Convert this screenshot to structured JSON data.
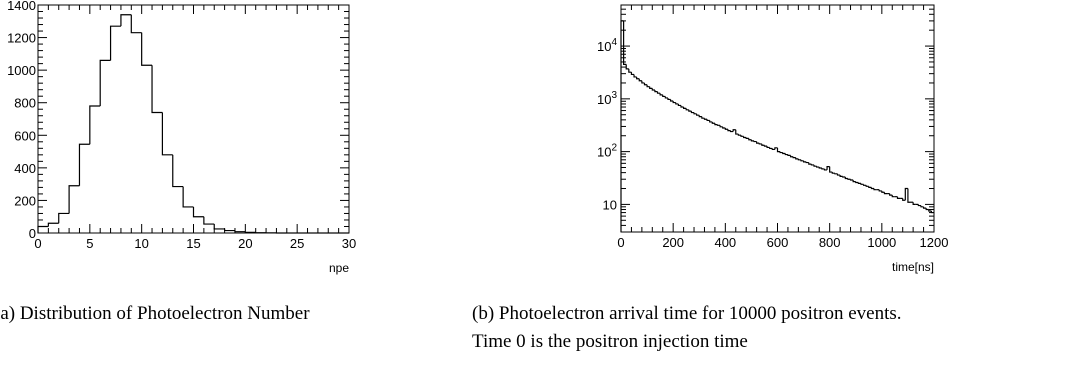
{
  "chart_data": [
    {
      "type": "histogram",
      "title": "",
      "xlabel": "npe",
      "ylabel": "",
      "xlim": [
        0,
        30
      ],
      "ylim": [
        0,
        1400
      ],
      "x_ticks": [
        "0",
        "5",
        "10",
        "15",
        "20",
        "25",
        "30"
      ],
      "y_ticks": [
        "0",
        "200",
        "400",
        "600",
        "800",
        "1000",
        "1200",
        "1400"
      ],
      "bin_edges": [
        0,
        1,
        2,
        3,
        4,
        5,
        6,
        7,
        8,
        9,
        10,
        11,
        12,
        13,
        14,
        15,
        16,
        17,
        18,
        19,
        20,
        21,
        22,
        23,
        24,
        25,
        26,
        27,
        28,
        29,
        30
      ],
      "values": [
        40,
        60,
        120,
        290,
        545,
        780,
        1060,
        1270,
        1340,
        1230,
        1030,
        740,
        480,
        285,
        160,
        100,
        55,
        25,
        15,
        8,
        4,
        2,
        1,
        0,
        0,
        0,
        0,
        0,
        0,
        0
      ],
      "caption": "(a) Distribution of Photoelectron Number"
    },
    {
      "type": "histogram",
      "title": "",
      "xlabel": "time[ns]",
      "ylabel": "",
      "y_scale": "log",
      "xlim": [
        0,
        1200
      ],
      "ylim": [
        3,
        60000
      ],
      "x_ticks": [
        "0",
        "200",
        "400",
        "600",
        "800",
        "1000",
        "1200"
      ],
      "y_ticks": [
        "10",
        "10^2",
        "10^3",
        "10^4"
      ],
      "bin_width": 10,
      "values": [
        30000,
        4500,
        3700,
        3200,
        2900,
        2600,
        2400,
        2200,
        2000,
        1850,
        1700,
        1580,
        1470,
        1370,
        1280,
        1190,
        1110,
        1040,
        975,
        910,
        850,
        800,
        750,
        700,
        660,
        620,
        585,
        550,
        520,
        490,
        460,
        430,
        410,
        390,
        365,
        345,
        325,
        315,
        295,
        280,
        265,
        250,
        240,
        260,
        215,
        205,
        195,
        185,
        178,
        168,
        160,
        155,
        145,
        140,
        132,
        127,
        120,
        115,
        110,
        118,
        100,
        96,
        92,
        88,
        85,
        80,
        77,
        73,
        70,
        67,
        64,
        62,
        58,
        56,
        53,
        51,
        49,
        47,
        45,
        52,
        41,
        39,
        38,
        36,
        34,
        33,
        31,
        30,
        29,
        27,
        26,
        25,
        24,
        23,
        22,
        21,
        20,
        19,
        19,
        18,
        17,
        16,
        16,
        15,
        14,
        14,
        13,
        13,
        12,
        20,
        11,
        11,
        10,
        10,
        9.5,
        9,
        8.5,
        8,
        7.5,
        7
      ],
      "caption_line1": "(b) Photoelectron arrival time for 10000 positron events.",
      "caption_line2": "Time 0 is the positron injection time"
    }
  ]
}
